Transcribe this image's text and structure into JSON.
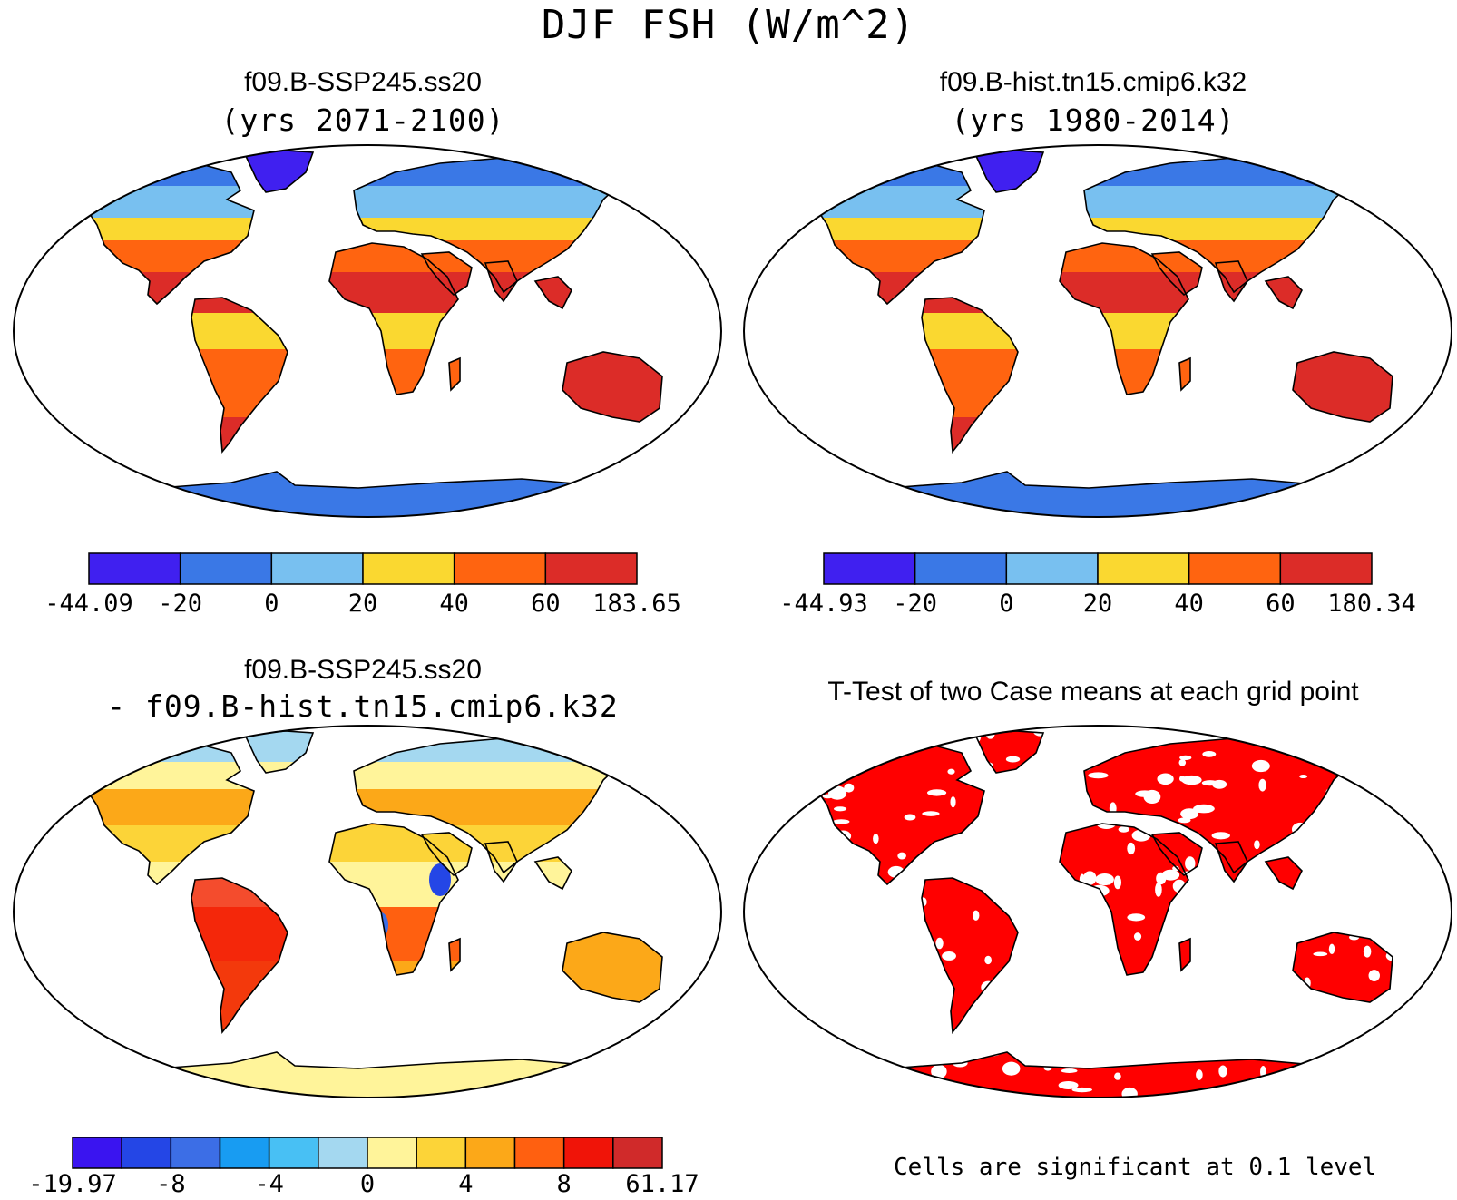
{
  "title": "DJF FSH (W/m^2)",
  "colors": {
    "c6": [
      "#4020f0",
      "#3a78e6",
      "#78c0f0",
      "#fad830",
      "#ff6410",
      "#dc2c28"
    ],
    "c12": [
      "#3a14f0",
      "#2446e6",
      "#3c6ee6",
      "#189cf2",
      "#48c0f4",
      "#a4d8f0",
      "#fff49a",
      "#fcd438",
      "#fca818",
      "#ff6010",
      "#f01408",
      "#d02a2a"
    ],
    "signif": "#ff0000",
    "coast": "#000000"
  },
  "panels": [
    {
      "title": "f09.B-SSP245.ss20",
      "subtitle": "(yrs 2071-2100)",
      "colorbar_labels": [
        "-44.09",
        "-20",
        "0",
        "20",
        "40",
        "60",
        "183.65"
      ]
    },
    {
      "title": "f09.B-hist.tn15.cmip6.k32",
      "subtitle": "(yrs 1980-2014)",
      "colorbar_labels": [
        "-44.93",
        "-20",
        "0",
        "20",
        "40",
        "60",
        "180.34"
      ]
    },
    {
      "title": "f09.B-SSP245.ss20",
      "subtitle": "- f09.B-hist.tn15.cmip6.k32",
      "colorbar_labels": [
        "-19.97",
        "-8",
        "-4",
        "0",
        "4",
        "8",
        "61.17"
      ]
    },
    {
      "title": "T-Test of two Case means at each grid point",
      "note": "Cells are significant at 0.1 level"
    }
  ]
}
